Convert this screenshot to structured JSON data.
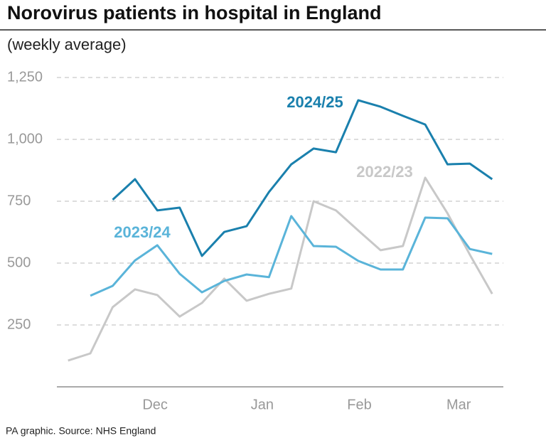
{
  "chart_data": {
    "type": "line",
    "title": "Norovirus patients in hospital in England",
    "subtitle": "(weekly average)",
    "source": "PA graphic. Source: NHS England",
    "x": [
      0,
      1,
      2,
      3,
      4,
      5,
      6,
      7,
      8,
      9,
      10,
      11,
      12,
      13,
      14,
      15,
      16,
      17,
      18,
      19
    ],
    "xlim": [
      -0.5,
      19.5
    ],
    "xticks": [
      {
        "value": 3.9,
        "label": "Dec"
      },
      {
        "value": 8.7,
        "label": "Jan"
      },
      {
        "value": 13.05,
        "label": "Feb"
      },
      {
        "value": 17.5,
        "label": "Mar"
      }
    ],
    "ylim": [
      0,
      1250
    ],
    "yticks": [
      250,
      500,
      750,
      {
        "value": 1000,
        "label": "1,000"
      },
      {
        "value": 1250,
        "label": "1,250"
      }
    ],
    "grid": true,
    "series": [
      {
        "name": "2022/23",
        "color": "#c8c8c8",
        "values": [
          106,
          135,
          322,
          394,
          371,
          284,
          339,
          437,
          348,
          376,
          397,
          750,
          713,
          632,
          552,
          569,
          845,
          701,
          534,
          376
        ]
      },
      {
        "name": "2023/24",
        "color": "#5ab4d9",
        "values": [
          null,
          368,
          408,
          511,
          572,
          457,
          382,
          428,
          454,
          443,
          690,
          569,
          566,
          509,
          474,
          474,
          684,
          681,
          557,
          537
        ]
      },
      {
        "name": "2024/25",
        "color": "#1a80ad",
        "values": [
          null,
          null,
          756,
          839,
          713,
          724,
          529,
          626,
          649,
          787,
          899,
          963,
          948,
          1158,
          1132,
          1095,
          1060,
          899,
          902,
          839
        ]
      }
    ]
  }
}
